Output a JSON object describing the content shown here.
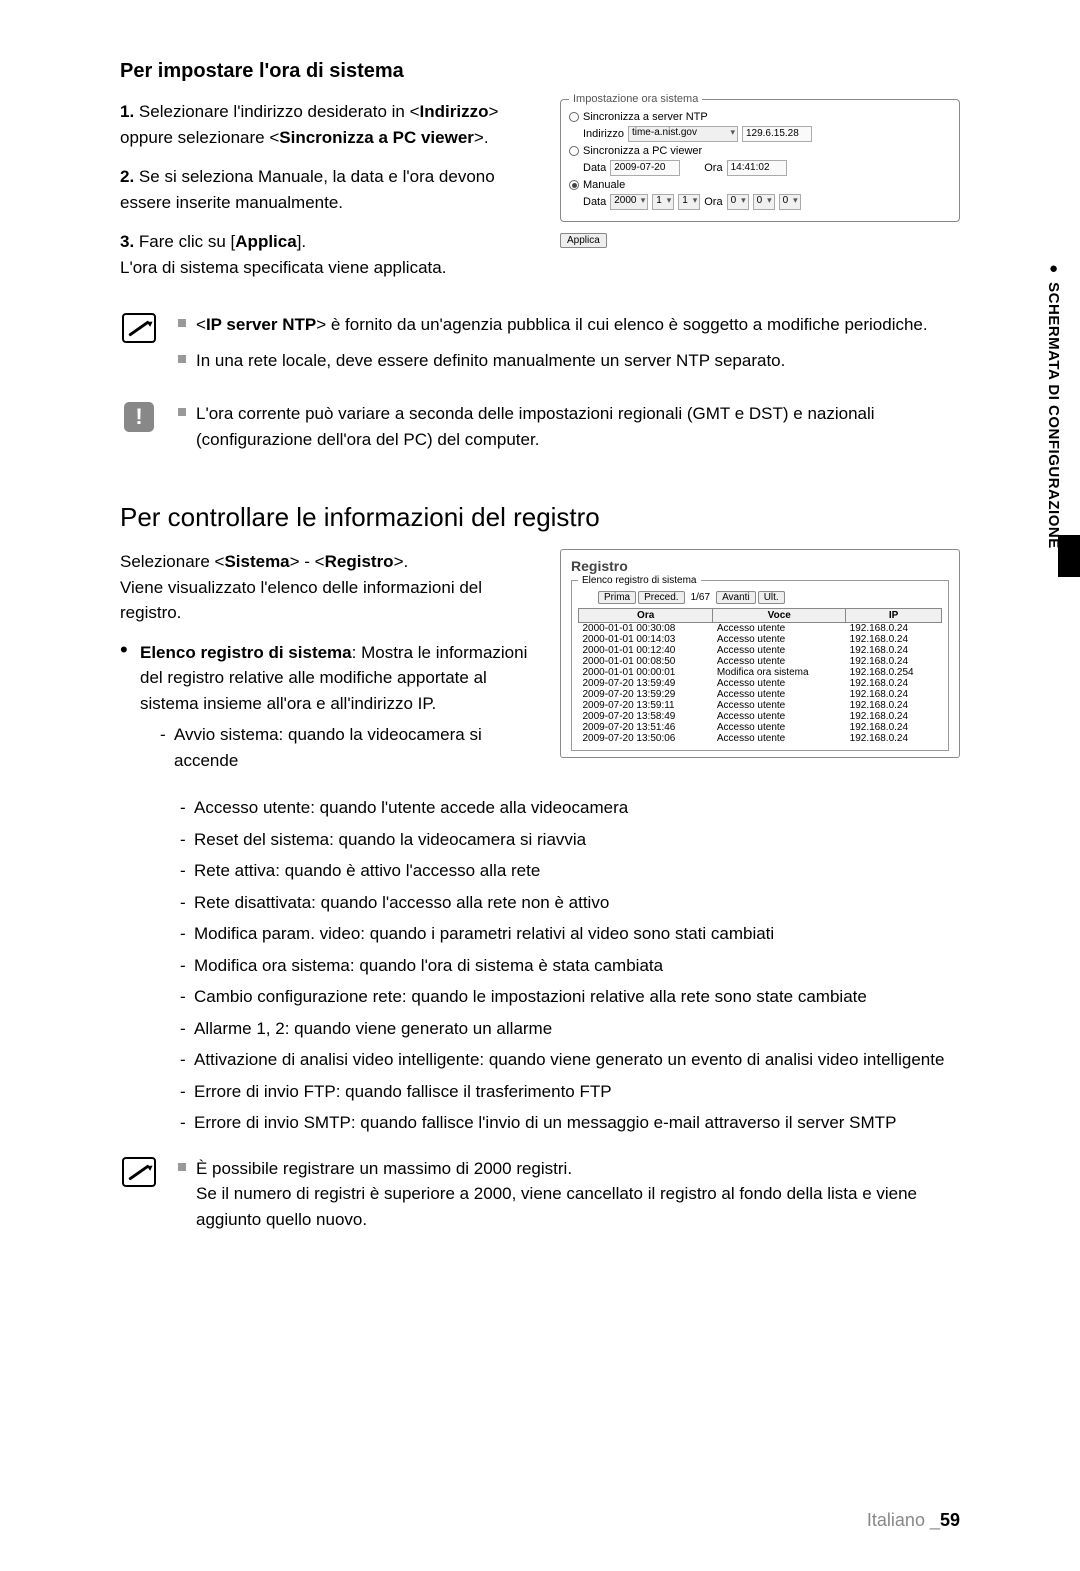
{
  "section1": {
    "title": "Per impostare l'ora di sistema",
    "step1_num": "1.",
    "step1_a": "Selezionare l'indirizzo desiderato in <",
    "step1_b": "Indirizzo",
    "step1_c": "> oppure selezionare <",
    "step1_d": "Sincronizza a PC viewer",
    "step1_e": ">.",
    "step2_num": "2.",
    "step2": "Se si seleziona Manuale, la data e l'ora devono essere inserite manualmente.",
    "step3_num": "3.",
    "step3_a": "Fare clic su [",
    "step3_b": "Applica",
    "step3_c": "].",
    "step3_d": "L'ora di sistema specificata viene applicata."
  },
  "time_panel": {
    "legend": "Impostazione ora sistema",
    "opt1": "Sincronizza a server NTP",
    "addr_label": "Indirizzo",
    "addr_value": "time-a.nist.gov",
    "addr_ip": "129.6.15.28",
    "opt2": "Sincronizza a PC viewer",
    "date_label": "Data",
    "date_value": "2009-07-20",
    "time_label": "Ora",
    "time_value": "14:41:02",
    "opt3": "Manuale",
    "m_date_label": "Data",
    "m_year": "2000",
    "m_mon": "1",
    "m_day": "1",
    "m_time_label": "Ora",
    "m_h": "0",
    "m_m": "0",
    "m_s": "0",
    "apply": "Applica"
  },
  "note1": {
    "line1_a": "<",
    "line1_b": "IP server NTP",
    "line1_c": "> è fornito da un'agenzia pubblica il cui elenco è soggetto a modifiche periodiche.",
    "line2": "In una rete locale, deve essere definito manualmente un server NTP separato."
  },
  "note2": {
    "line1": "L'ora corrente può variare a seconda delle impostazioni regionali (GMT e DST) e nazionali (configurazione dell'ora del PC) del computer."
  },
  "section2": {
    "title": "Per controllare le informazioni del registro",
    "intro_a": "Selezionare <",
    "intro_b": "Sistema",
    "intro_c": "> - <",
    "intro_d": "Registro",
    "intro_e": ">.",
    "intro_f": "Viene visualizzato l'elenco delle informazioni del registro.",
    "bullet_a": "Elenco registro di sistema",
    "bullet_b": ": Mostra le informazioni del registro relative alle modifiche apportate al sistema insieme all'ora e all'indirizzo IP.",
    "dash": {
      "d1": "Avvio sistema: quando la videocamera si accende",
      "d2": "Accesso utente: quando l'utente accede alla videocamera",
      "d3": "Reset del sistema: quando la videocamera si riavvia",
      "d4": "Rete attiva: quando è attivo l'accesso alla rete",
      "d5": "Rete disattivata: quando l'accesso alla rete non è attivo",
      "d6": "Modifica param. video: quando i parametri relativi al video sono stati cambiati",
      "d7": "Modifica ora sistema: quando l'ora di sistema è stata cambiata",
      "d8": "Cambio configurazione rete: quando le impostazioni relative alla rete sono state cambiate",
      "d9": "Allarme 1, 2: quando viene generato un allarme",
      "d10": "Attivazione di analisi video intelligente: quando viene generato un evento di analisi video intelligente",
      "d11": "Errore di invio FTP: quando fallisce il trasferimento FTP",
      "d12": "Errore di invio SMTP: quando fallisce l'invio di un messaggio e-mail attraverso il server SMTP"
    }
  },
  "registro_panel": {
    "title": "Registro",
    "legend": "Elenco registro di sistema",
    "prima": "Prima",
    "preced": "Preced.",
    "page": "1/67",
    "avanti": "Avanti",
    "ult": "Ult.",
    "col_ora": "Ora",
    "col_voce": "Voce",
    "col_ip": "IP",
    "rows": [
      {
        "t": "2000-01-01 00:30:08",
        "v": "Accesso utente",
        "ip": "192.168.0.24"
      },
      {
        "t": "2000-01-01 00:14:03",
        "v": "Accesso utente",
        "ip": "192.168.0.24"
      },
      {
        "t": "2000-01-01 00:12:40",
        "v": "Accesso utente",
        "ip": "192.168.0.24"
      },
      {
        "t": "2000-01-01 00:08:50",
        "v": "Accesso utente",
        "ip": "192.168.0.24"
      },
      {
        "t": "2000-01-01 00:00:01",
        "v": "Modifica ora sistema",
        "ip": "192.168.0.254"
      },
      {
        "t": "2009-07-20 13:59:49",
        "v": "Accesso utente",
        "ip": "192.168.0.24"
      },
      {
        "t": "2009-07-20 13:59:29",
        "v": "Accesso utente",
        "ip": "192.168.0.24"
      },
      {
        "t": "2009-07-20 13:59:11",
        "v": "Accesso utente",
        "ip": "192.168.0.24"
      },
      {
        "t": "2009-07-20 13:58:49",
        "v": "Accesso utente",
        "ip": "192.168.0.24"
      },
      {
        "t": "2009-07-20 13:51:46",
        "v": "Accesso utente",
        "ip": "192.168.0.24"
      },
      {
        "t": "2009-07-20 13:50:06",
        "v": "Accesso utente",
        "ip": "192.168.0.24"
      }
    ]
  },
  "note3": {
    "line1": "È possibile registrare un massimo di 2000 registri.",
    "line2": "Se il numero di registri è superiore a 2000, viene cancellato il registro al fondo della lista e viene aggiunto quello nuovo."
  },
  "sidebar": {
    "bullet": "●",
    "label": "SCHERMATA DI CONFIGURAZIONE"
  },
  "footer": {
    "lang": "Italiano _",
    "page": "59"
  }
}
